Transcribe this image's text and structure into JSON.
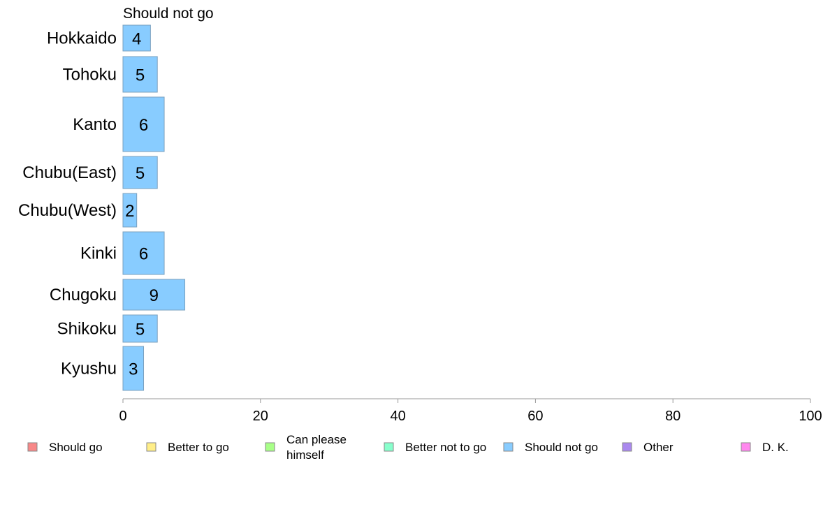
{
  "chart_data": {
    "type": "bar",
    "orientation": "horizontal",
    "title": "Should not go",
    "xlabel": "",
    "ylabel": "",
    "categories": [
      "Hokkaido",
      "Tohoku",
      "Kanto",
      "Chubu(East)",
      "Chubu(West)",
      "Kinki",
      "Chugoku",
      "Shikoku",
      "Kyushu"
    ],
    "series": [
      {
        "name": "Should not go",
        "values": [
          4,
          5,
          6,
          5,
          2,
          6,
          9,
          5,
          3
        ],
        "color": "#88ccff"
      }
    ],
    "data_labels": [
      "4",
      "5",
      "6",
      "5",
      "2",
      "6",
      "9",
      "5",
      "3"
    ],
    "xlim": [
      0,
      100
    ],
    "x_ticks": [
      0,
      20,
      40,
      60,
      80,
      100
    ],
    "x_tick_labels": [
      "0",
      "20",
      "40",
      "60",
      "80",
      "100"
    ],
    "grid": false,
    "legend_position": "bottom",
    "legend": [
      {
        "label": "Should go",
        "color": "#f88888"
      },
      {
        "label": "Better to go",
        "color": "#ffee88"
      },
      {
        "label": "Can please himself",
        "lines": [
          "Can please",
          "himself"
        ],
        "color": "#a8ff88"
      },
      {
        "label": "Better not to go",
        "color": "#88ffcc"
      },
      {
        "label": "Should not go",
        "color": "#88ccff"
      },
      {
        "label": "Other",
        "color": "#aa88ee"
      },
      {
        "label": "D. K.",
        "color": "#ff88ee"
      }
    ]
  }
}
